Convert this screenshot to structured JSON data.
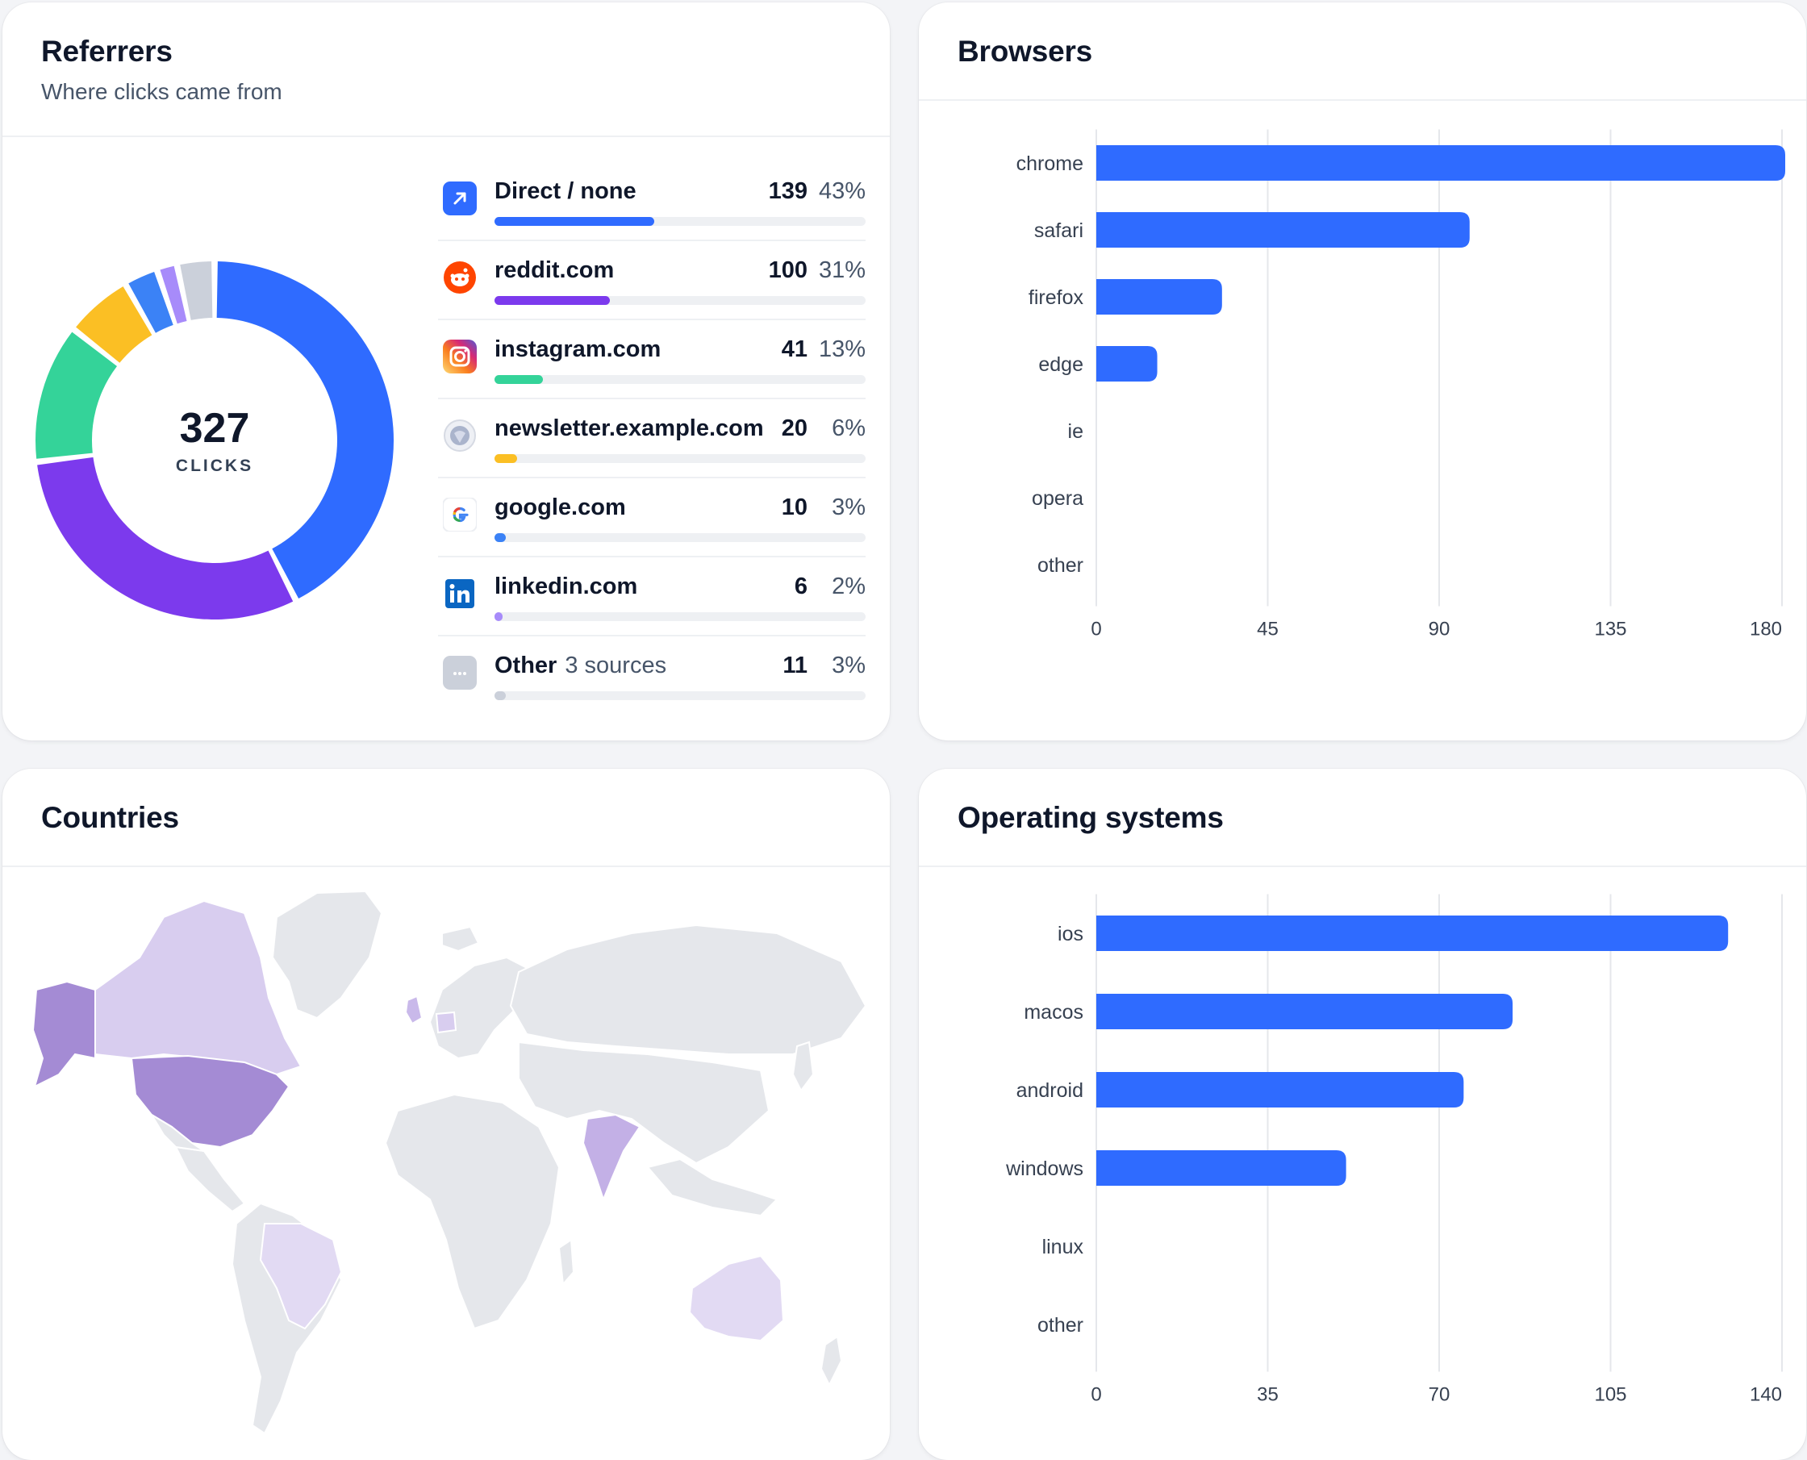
{
  "referrers": {
    "title": "Referrers",
    "subtitle": "Where clicks came from",
    "total": "327",
    "total_label": "CLICKS",
    "items": [
      {
        "name": "Direct / none",
        "extra": "",
        "count": "139",
        "pct": "43%",
        "share": 0.43,
        "color": "#2f6bff",
        "icon": "direct-arrow-icon"
      },
      {
        "name": "reddit.com",
        "extra": "",
        "count": "100",
        "pct": "31%",
        "share": 0.31,
        "color": "#7c3aed",
        "icon": "reddit-icon"
      },
      {
        "name": "instagram.com",
        "extra": "",
        "count": "41",
        "pct": "13%",
        "share": 0.13,
        "color": "#34d399",
        "icon": "instagram-icon"
      },
      {
        "name": "newsletter.example.com",
        "extra": "",
        "count": "20",
        "pct": "6%",
        "share": 0.06,
        "color": "#fbbf24",
        "icon": "globe-icon"
      },
      {
        "name": "google.com",
        "extra": "",
        "count": "10",
        "pct": "3%",
        "share": 0.03,
        "color": "#3b82f6",
        "icon": "google-icon"
      },
      {
        "name": "linkedin.com",
        "extra": "",
        "count": "6",
        "pct": "2%",
        "share": 0.02,
        "color": "#a78bfa",
        "icon": "linkedin-icon"
      },
      {
        "name": "Other",
        "extra": "3 sources",
        "count": "11",
        "pct": "3%",
        "share": 0.03,
        "color": "#cbd0da",
        "icon": "more-icon"
      }
    ]
  },
  "browsers": {
    "title": "Browsers",
    "chart_data": {
      "type": "bar",
      "orientation": "horizontal",
      "categories": [
        "chrome",
        "safari",
        "firefox",
        "edge",
        "ie",
        "opera",
        "other"
      ],
      "values": [
        181,
        98,
        33,
        16,
        0,
        0,
        0
      ],
      "xlim": [
        0,
        180
      ],
      "xticks": [
        "0",
        "45",
        "90",
        "135",
        "180"
      ],
      "color": "#2f6bff",
      "grid": true
    }
  },
  "countries": {
    "title": "Countries",
    "highlight_strong": "#a48bd4",
    "highlight_light": "#d8cdef",
    "base_land": "#e5e7eb"
  },
  "operating_systems": {
    "title": "Operating systems",
    "chart_data": {
      "type": "bar",
      "orientation": "horizontal",
      "categories": [
        "ios",
        "macos",
        "android",
        "windows",
        "linux",
        "other"
      ],
      "values": [
        129,
        85,
        75,
        51,
        0,
        0
      ],
      "xlim": [
        0,
        140
      ],
      "xticks": [
        "0",
        "35",
        "70",
        "105",
        "140"
      ],
      "color": "#2f6bff",
      "grid": true
    }
  }
}
